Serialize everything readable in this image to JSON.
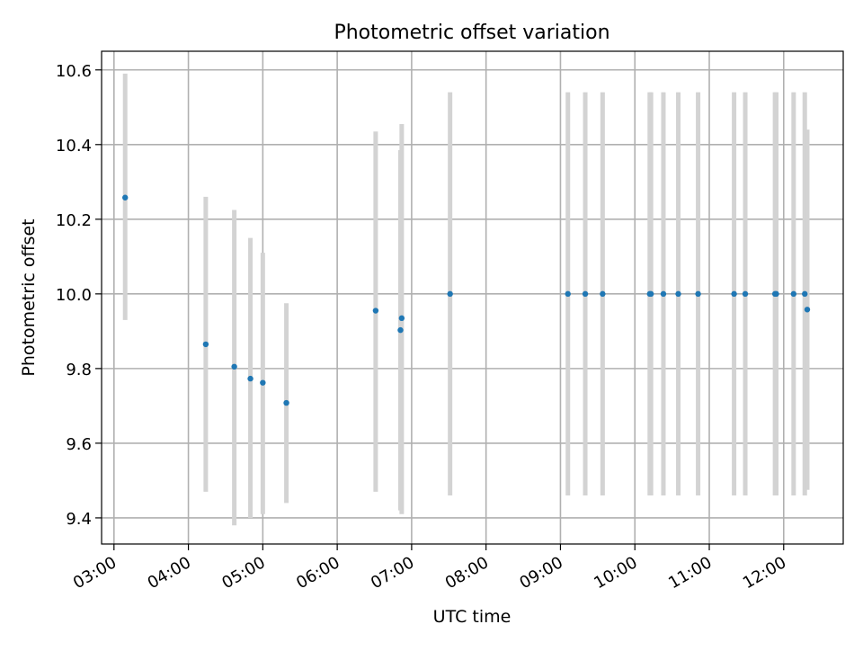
{
  "chart_data": {
    "type": "scatter",
    "title": "Photometric offset variation",
    "xlabel": "UTC time",
    "ylabel": "Photometric offset",
    "xlim": [
      "02:50",
      "12:48"
    ],
    "ylim": [
      9.33,
      10.65
    ],
    "grid": true,
    "legend": "none",
    "colors": {
      "points": "#1f77b4",
      "errorbars": "#d3d3d3",
      "grid": "#b0b0b0"
    },
    "x_ticks": [
      "03:00",
      "04:00",
      "05:00",
      "06:00",
      "07:00",
      "08:00",
      "09:00",
      "10:00",
      "11:00",
      "12:00"
    ],
    "y_ticks": [
      "9.4",
      "9.6",
      "9.8",
      "10.0",
      "10.2",
      "10.4",
      "10.6"
    ],
    "points": [
      {
        "time": "03:09",
        "y": 10.258,
        "low": 9.93,
        "high": 10.59
      },
      {
        "time": "04:14",
        "y": 9.865,
        "low": 9.47,
        "high": 10.26
      },
      {
        "time": "04:37",
        "y": 9.805,
        "low": 9.38,
        "high": 10.225
      },
      {
        "time": "04:50",
        "y": 9.773,
        "low": 9.4,
        "high": 10.15
      },
      {
        "time": "05:00",
        "y": 9.762,
        "low": 9.41,
        "high": 10.11
      },
      {
        "time": "05:19",
        "y": 9.708,
        "low": 9.44,
        "high": 9.975
      },
      {
        "time": "06:31",
        "y": 9.955,
        "low": 9.47,
        "high": 10.435
      },
      {
        "time": "06:51",
        "y": 9.903,
        "low": 9.42,
        "high": 10.385
      },
      {
        "time": "06:52",
        "y": 9.935,
        "low": 9.41,
        "high": 10.455
      },
      {
        "time": "07:31",
        "y": 10.0,
        "low": 9.46,
        "high": 10.54
      },
      {
        "time": "09:06",
        "y": 10.0,
        "low": 9.46,
        "high": 10.54
      },
      {
        "time": "09:20",
        "y": 10.0,
        "low": 9.46,
        "high": 10.54
      },
      {
        "time": "09:34",
        "y": 10.0,
        "low": 9.46,
        "high": 10.54
      },
      {
        "time": "10:12",
        "y": 10.0,
        "low": 9.46,
        "high": 10.54
      },
      {
        "time": "10:13",
        "y": 10.0,
        "low": 9.46,
        "high": 10.54
      },
      {
        "time": "10:23",
        "y": 10.0,
        "low": 9.46,
        "high": 10.54
      },
      {
        "time": "10:35",
        "y": 10.0,
        "low": 9.46,
        "high": 10.54
      },
      {
        "time": "10:51",
        "y": 10.0,
        "low": 9.46,
        "high": 10.54
      },
      {
        "time": "11:20",
        "y": 10.0,
        "low": 9.46,
        "high": 10.54
      },
      {
        "time": "11:29",
        "y": 10.0,
        "low": 9.46,
        "high": 10.54
      },
      {
        "time": "11:53",
        "y": 10.0,
        "low": 9.46,
        "high": 10.54
      },
      {
        "time": "11:54",
        "y": 10.0,
        "low": 9.46,
        "high": 10.54
      },
      {
        "time": "12:08",
        "y": 10.0,
        "low": 9.46,
        "high": 10.54
      },
      {
        "time": "12:17",
        "y": 10.0,
        "low": 9.46,
        "high": 10.54
      },
      {
        "time": "12:19",
        "y": 9.958,
        "low": 9.475,
        "high": 10.44
      }
    ]
  }
}
